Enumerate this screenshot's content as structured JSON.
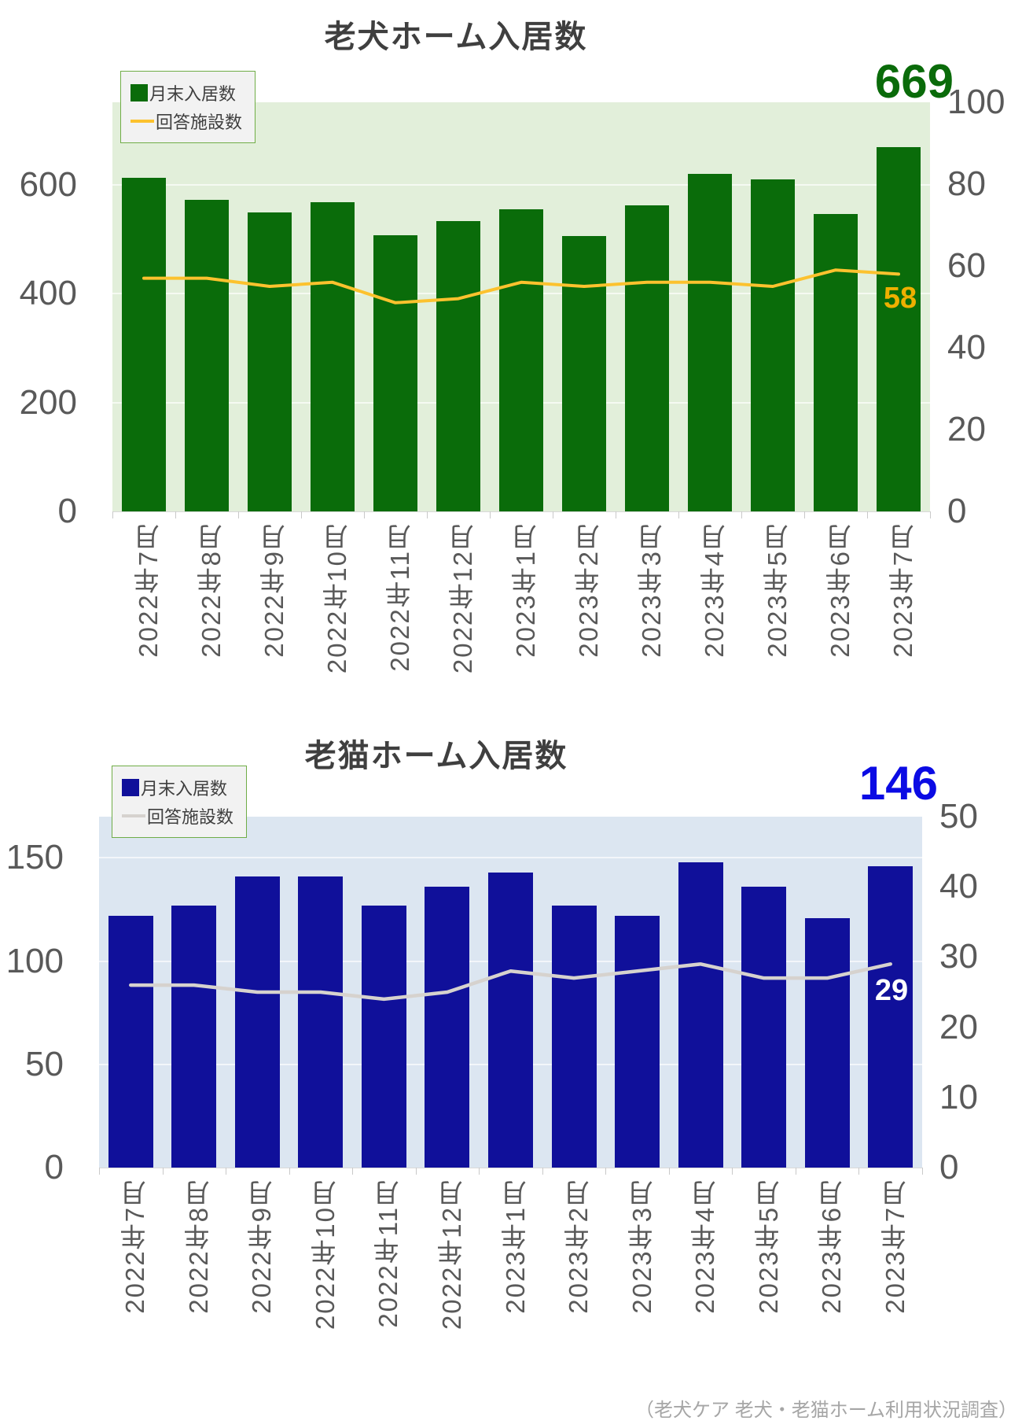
{
  "page": {
    "caption": "（老犬ケア 老犬・老猫ホーム利用状況調査）"
  },
  "styles": {
    "axis_text": "#595959",
    "title_text": "#3f3f3f",
    "legend_bg": "#f2f2f2",
    "legend_border": "#70ad47",
    "caption_color": "#a6a6a6"
  },
  "chart_data": [
    {
      "type": "bar",
      "title": "老犬ホーム入居数",
      "categories": [
        "2022年7月",
        "2022年8月",
        "2022年9月",
        "2022年10月",
        "2022年11月",
        "2022年12月",
        "2023年1月",
        "2023年2月",
        "2023年3月",
        "2023年4月",
        "2023年5月",
        "2023年6月",
        "2023年7月"
      ],
      "series": [
        {
          "name": "月末入居数",
          "type": "bar",
          "axis": "left",
          "color": "#0a6c0a",
          "values": [
            613,
            572,
            549,
            568,
            508,
            534,
            556,
            506,
            562,
            620,
            610,
            546,
            669
          ]
        },
        {
          "name": "回答施設数",
          "type": "line",
          "axis": "right",
          "color": "#fcc22e",
          "values": [
            57,
            57,
            55,
            56,
            51,
            52,
            56,
            55,
            56,
            56,
            55,
            59,
            58
          ]
        }
      ],
      "left_axis": {
        "tick_labels": [
          "0",
          "200",
          "400",
          "600"
        ],
        "max": 752
      },
      "right_axis": {
        "tick_labels": [
          "0",
          "20",
          "40",
          "60",
          "80",
          "100"
        ],
        "max": 100
      },
      "plot_bg": "#e2efda",
      "grid": true,
      "legend_position": "top-left",
      "annotations": {
        "big_number": "669",
        "big_number_color": "#0a6b0a",
        "line_end_label": "58",
        "line_end_label_color": "#eeb000"
      }
    },
    {
      "type": "bar",
      "title": "老猫ホーム入居数",
      "categories": [
        "2022年7月",
        "2022年8月",
        "2022年9月",
        "2022年10月",
        "2022年11月",
        "2022年12月",
        "2023年1月",
        "2023年2月",
        "2023年3月",
        "2023年4月",
        "2023年5月",
        "2023年6月",
        "2023年7月"
      ],
      "series": [
        {
          "name": "月末入居数",
          "type": "bar",
          "axis": "left",
          "color": "#10109a",
          "values": [
            122,
            127,
            141,
            141,
            127,
            136,
            143,
            127,
            122,
            148,
            136,
            121,
            146
          ]
        },
        {
          "name": "回答施設数",
          "type": "line",
          "axis": "right",
          "color": "#d6d2ce",
          "values": [
            26,
            26,
            25,
            25,
            24,
            25,
            28,
            27,
            28,
            29,
            27,
            27,
            29
          ]
        }
      ],
      "left_axis": {
        "tick_labels": [
          "0",
          "50",
          "100",
          "150"
        ],
        "max": 170
      },
      "right_axis": {
        "tick_labels": [
          "0",
          "10",
          "20",
          "30",
          "40",
          "50"
        ],
        "max": 50
      },
      "plot_bg": "#dce6f1",
      "grid": true,
      "legend_position": "top-left",
      "annotations": {
        "big_number": "146",
        "big_number_color": "#0b0be4",
        "line_end_label": "29",
        "line_end_label_color": "#ffffff"
      }
    }
  ]
}
